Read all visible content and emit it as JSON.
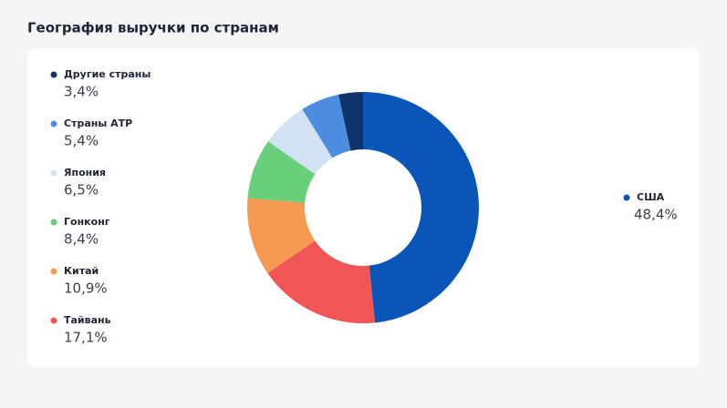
{
  "chart_data": {
    "type": "pie",
    "title": "География выручки по странам",
    "categories": [
      "США",
      "Тайвань",
      "Китай",
      "Гонконг",
      "Япония",
      "Страны АТР",
      "Другие страны"
    ],
    "values": [
      48.4,
      17.1,
      10.9,
      8.4,
      6.5,
      5.4,
      3.4
    ],
    "value_labels": [
      "48,4%",
      "17,1%",
      "10,9%",
      "8,4%",
      "6,5%",
      "5,4%",
      "3,4%"
    ],
    "colors": [
      "#0a56b8",
      "#f25555",
      "#f59a50",
      "#68cf7a",
      "#d3e1f5",
      "#4d8de0",
      "#12326b"
    ]
  }
}
